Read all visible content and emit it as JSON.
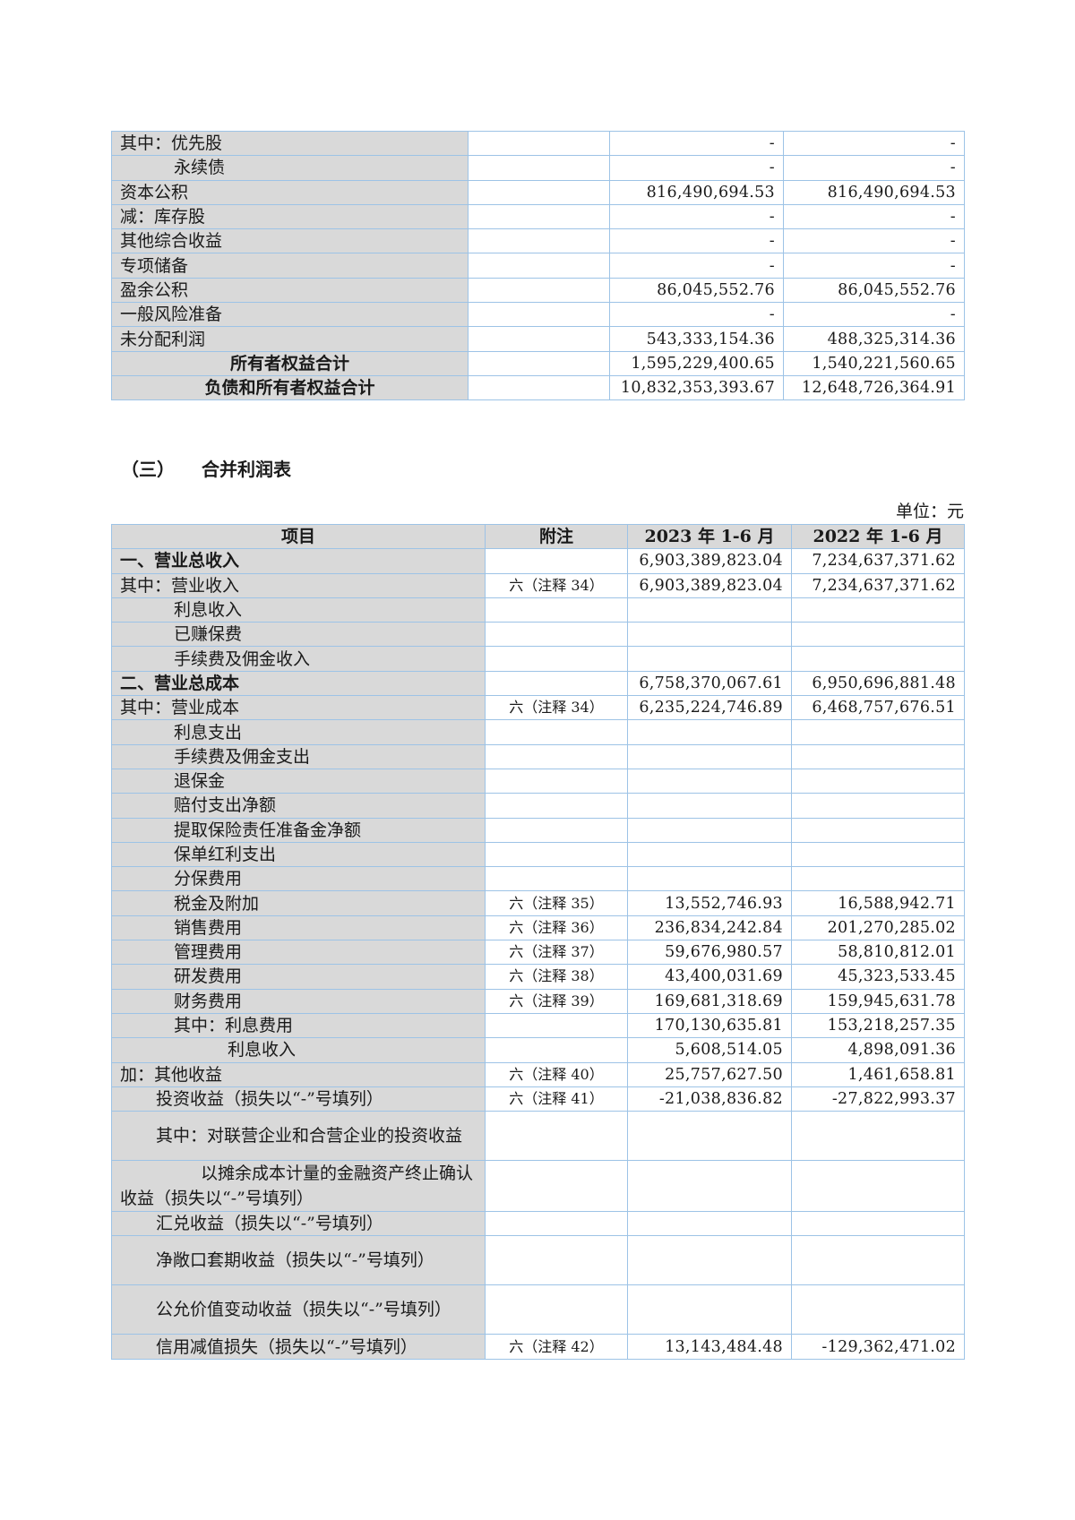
{
  "balance_tail": {
    "rows": [
      {
        "item": "其中：优先股",
        "indent": 0,
        "note": "",
        "cur": "-",
        "prev": "-"
      },
      {
        "item": "永续债",
        "indent": 3,
        "note": "",
        "cur": "-",
        "prev": "-"
      },
      {
        "item": "资本公积",
        "indent": 0,
        "note": "",
        "cur": "816,490,694.53",
        "prev": "816,490,694.53"
      },
      {
        "item": "减：库存股",
        "indent": 0,
        "note": "",
        "cur": "-",
        "prev": "-"
      },
      {
        "item": "其他综合收益",
        "indent": 0,
        "note": "",
        "cur": "-",
        "prev": "-"
      },
      {
        "item": "专项储备",
        "indent": 0,
        "note": "",
        "cur": "-",
        "prev": "-"
      },
      {
        "item": "盈余公积",
        "indent": 0,
        "note": "",
        "cur": "86,045,552.76",
        "prev": "86,045,552.76"
      },
      {
        "item": "一般风险准备",
        "indent": 0,
        "note": "",
        "cur": "-",
        "prev": "-"
      },
      {
        "item": "未分配利润",
        "indent": 0,
        "note": "",
        "cur": "543,333,154.36",
        "prev": "488,325,314.36"
      },
      {
        "item": "所有者权益合计",
        "center": true,
        "bold": true,
        "note": "",
        "cur": "1,595,229,400.65",
        "prev": "1,540,221,560.65"
      },
      {
        "item": "负债和所有者权益合计",
        "center": true,
        "bold": true,
        "note": "",
        "cur": "10,832,353,393.67",
        "prev": "12,648,726,364.91"
      }
    ]
  },
  "income_statement": {
    "section_no": "（三）",
    "title": "合并利润表",
    "unit": "单位：元",
    "headers": [
      "项目",
      "附注",
      "2023 年 1-6 月",
      "2022 年 1-6 月"
    ],
    "rows": [
      {
        "item": "一、营业总收入",
        "bold": true,
        "indent": 0,
        "note": "",
        "cur": "6,903,389,823.04",
        "prev": "7,234,637,371.62"
      },
      {
        "item": "其中：营业收入",
        "indent": 0,
        "note": "六（注释 34）",
        "cur": "6,903,389,823.04",
        "prev": "7,234,637,371.62"
      },
      {
        "item": "利息收入",
        "indent": 3,
        "note": "",
        "cur": "",
        "prev": ""
      },
      {
        "item": "已赚保费",
        "indent": 3,
        "note": "",
        "cur": "",
        "prev": ""
      },
      {
        "item": "手续费及佣金收入",
        "indent": 3,
        "note": "",
        "cur": "",
        "prev": ""
      },
      {
        "item": "二、营业总成本",
        "bold": true,
        "indent": 0,
        "note": "",
        "cur": "6,758,370,067.61",
        "prev": "6,950,696,881.48"
      },
      {
        "item": "其中：营业成本",
        "indent": 0,
        "note": "六（注释 34）",
        "cur": "6,235,224,746.89",
        "prev": "6,468,757,676.51"
      },
      {
        "item": "利息支出",
        "indent": 3,
        "note": "",
        "cur": "",
        "prev": ""
      },
      {
        "item": "手续费及佣金支出",
        "indent": 3,
        "note": "",
        "cur": "",
        "prev": ""
      },
      {
        "item": "退保金",
        "indent": 3,
        "note": "",
        "cur": "",
        "prev": ""
      },
      {
        "item": "赔付支出净额",
        "indent": 3,
        "note": "",
        "cur": "",
        "prev": ""
      },
      {
        "item": "提取保险责任准备金净额",
        "indent": 3,
        "note": "",
        "cur": "",
        "prev": ""
      },
      {
        "item": "保单红利支出",
        "indent": 3,
        "note": "",
        "cur": "",
        "prev": ""
      },
      {
        "item": "分保费用",
        "indent": 3,
        "note": "",
        "cur": "",
        "prev": ""
      },
      {
        "item": "税金及附加",
        "indent": 3,
        "note": "六（注释 35）",
        "cur": "13,552,746.93",
        "prev": "16,588,942.71"
      },
      {
        "item": "销售费用",
        "indent": 3,
        "note": "六（注释 36）",
        "cur": "236,834,242.84",
        "prev": "201,270,285.02"
      },
      {
        "item": "管理费用",
        "indent": 3,
        "note": "六（注释 37）",
        "cur": "59,676,980.57",
        "prev": "58,810,812.01"
      },
      {
        "item": "研发费用",
        "indent": 3,
        "note": "六（注释 38）",
        "cur": "43,400,031.69",
        "prev": "45,323,533.45"
      },
      {
        "item": "财务费用",
        "indent": 3,
        "note": "六（注释 39）",
        "cur": "169,681,318.69",
        "prev": "159,945,631.78"
      },
      {
        "item": "其中：利息费用",
        "indent": 3,
        "note": "",
        "cur": "170,130,635.81",
        "prev": "153,218,257.35"
      },
      {
        "item": "利息收入",
        "indent": 6,
        "note": "",
        "cur": "5,608,514.05",
        "prev": "4,898,091.36"
      },
      {
        "item": "加：其他收益",
        "indent": 0,
        "note": "六（注释 40）",
        "cur": "25,757,627.50",
        "prev": "1,461,658.81"
      },
      {
        "item": "投资收益（损失以“-”号填列）",
        "indent": 2,
        "note": "六（注释 41）",
        "cur": "-21,038,836.82",
        "prev": "-27,822,993.37"
      },
      {
        "item": "其中：对联营企业和合营企业的投资收益",
        "indent": 2,
        "multi": true,
        "note": "",
        "cur": "",
        "prev": ""
      },
      {
        "item": "以摊余成本计量的金融资产终止确认收益（损失以“-”号填列）",
        "indent": 4.5,
        "multi": true,
        "note": "",
        "cur": "",
        "prev": ""
      },
      {
        "item": "汇兑收益（损失以“-”号填列）",
        "indent": 2,
        "note": "",
        "cur": "",
        "prev": ""
      },
      {
        "item": "净敞口套期收益（损失以“-”号填列）",
        "indent": 2,
        "multi": true,
        "note": "",
        "cur": "",
        "prev": ""
      },
      {
        "item": "公允价值变动收益（损失以“-”号填列）",
        "indent": 2,
        "multi": true,
        "note": "",
        "cur": "",
        "prev": ""
      },
      {
        "item": "信用减值损失（损失以“-”号填列）",
        "indent": 2,
        "note": "六（注释 42）",
        "cur": "13,143,484.48",
        "prev": "-129,362,471.02"
      }
    ]
  }
}
